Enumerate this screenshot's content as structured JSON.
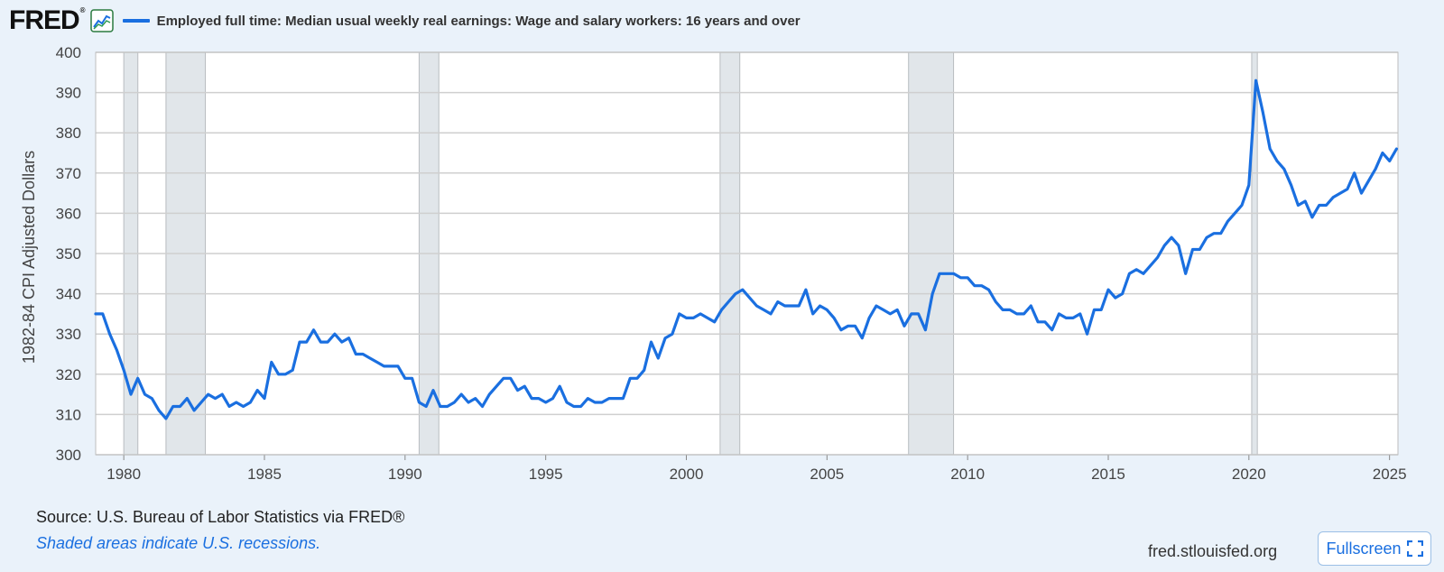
{
  "header": {
    "logo_text": "FRED",
    "logo_reg": "®",
    "logo_icon": "line-chart-icon",
    "series_title": "Employed full time: Median usual weekly real earnings: Wage and salary workers: 16 years and over"
  },
  "footer": {
    "source": "Source: U.S. Bureau of Labor Statistics via FRED®",
    "note": "Shaded areas indicate U.S. recessions.",
    "site": "fred.stlouisfed.org",
    "fullscreen_label": "Fullscreen",
    "fullscreen_icon": "expand-icon"
  },
  "colors": {
    "series": "#1a6fe0",
    "recession": "#e1e6ea",
    "grid": "#cccccc",
    "background": "#eaf2fa"
  },
  "chart_data": {
    "type": "line",
    "title": "Employed full time: Median usual weekly real earnings: Wage and salary workers: 16 years and over",
    "ylabel": "1982-84 CPI Adjusted Dollars",
    "xlabel": "",
    "ylim": [
      300,
      400
    ],
    "xlim": [
      1979.0,
      2025.3
    ],
    "yticks": [
      300,
      310,
      320,
      330,
      340,
      350,
      360,
      370,
      380,
      390,
      400
    ],
    "xticks": [
      1980,
      1985,
      1990,
      1995,
      2000,
      2005,
      2010,
      2015,
      2020,
      2025
    ],
    "grid": true,
    "legend": "top-left",
    "recessions": [
      [
        1980.0,
        1980.5
      ],
      [
        1981.5,
        1982.9
      ],
      [
        1990.5,
        1991.2
      ],
      [
        2001.2,
        2001.9
      ],
      [
        2007.9,
        2009.5
      ],
      [
        2020.1,
        2020.3
      ]
    ],
    "series": [
      {
        "name": "Employed full time: Median usual weekly real earnings: Wage and salary workers: 16 years and over",
        "points": [
          [
            1979.0,
            335
          ],
          [
            1979.25,
            335
          ],
          [
            1979.5,
            330
          ],
          [
            1979.75,
            326
          ],
          [
            1980.0,
            321
          ],
          [
            1980.25,
            315
          ],
          [
            1980.5,
            319
          ],
          [
            1980.75,
            315
          ],
          [
            1981.0,
            314
          ],
          [
            1981.25,
            311
          ],
          [
            1981.5,
            309
          ],
          [
            1981.75,
            312
          ],
          [
            1982.0,
            312
          ],
          [
            1982.25,
            314
          ],
          [
            1982.5,
            311
          ],
          [
            1982.75,
            313
          ],
          [
            1983.0,
            315
          ],
          [
            1983.25,
            314
          ],
          [
            1983.5,
            315
          ],
          [
            1983.75,
            312
          ],
          [
            1984.0,
            313
          ],
          [
            1984.25,
            312
          ],
          [
            1984.5,
            313
          ],
          [
            1984.75,
            316
          ],
          [
            1985.0,
            314
          ],
          [
            1985.25,
            323
          ],
          [
            1985.5,
            320
          ],
          [
            1985.75,
            320
          ],
          [
            1986.0,
            321
          ],
          [
            1986.25,
            328
          ],
          [
            1986.5,
            328
          ],
          [
            1986.75,
            331
          ],
          [
            1987.0,
            328
          ],
          [
            1987.25,
            328
          ],
          [
            1987.5,
            330
          ],
          [
            1987.75,
            328
          ],
          [
            1988.0,
            329
          ],
          [
            1988.25,
            325
          ],
          [
            1988.5,
            325
          ],
          [
            1988.75,
            324
          ],
          [
            1989.0,
            323
          ],
          [
            1989.25,
            322
          ],
          [
            1989.5,
            322
          ],
          [
            1989.75,
            322
          ],
          [
            1990.0,
            319
          ],
          [
            1990.25,
            319
          ],
          [
            1990.5,
            313
          ],
          [
            1990.75,
            312
          ],
          [
            1991.0,
            316
          ],
          [
            1991.25,
            312
          ],
          [
            1991.5,
            312
          ],
          [
            1991.75,
            313
          ],
          [
            1992.0,
            315
          ],
          [
            1992.25,
            313
          ],
          [
            1992.5,
            314
          ],
          [
            1992.75,
            312
          ],
          [
            1993.0,
            315
          ],
          [
            1993.25,
            317
          ],
          [
            1993.5,
            319
          ],
          [
            1993.75,
            319
          ],
          [
            1994.0,
            316
          ],
          [
            1994.25,
            317
          ],
          [
            1994.5,
            314
          ],
          [
            1994.75,
            314
          ],
          [
            1995.0,
            313
          ],
          [
            1995.25,
            314
          ],
          [
            1995.5,
            317
          ],
          [
            1995.75,
            313
          ],
          [
            1996.0,
            312
          ],
          [
            1996.25,
            312
          ],
          [
            1996.5,
            314
          ],
          [
            1996.75,
            313
          ],
          [
            1997.0,
            313
          ],
          [
            1997.25,
            314
          ],
          [
            1997.5,
            314
          ],
          [
            1997.75,
            314
          ],
          [
            1998.0,
            319
          ],
          [
            1998.25,
            319
          ],
          [
            1998.5,
            321
          ],
          [
            1998.75,
            328
          ],
          [
            1999.0,
            324
          ],
          [
            1999.25,
            329
          ],
          [
            1999.5,
            330
          ],
          [
            1999.75,
            335
          ],
          [
            2000.0,
            334
          ],
          [
            2000.25,
            334
          ],
          [
            2000.5,
            335
          ],
          [
            2000.75,
            334
          ],
          [
            2001.0,
            333
          ],
          [
            2001.25,
            336
          ],
          [
            2001.5,
            338
          ],
          [
            2001.75,
            340
          ],
          [
            2002.0,
            341
          ],
          [
            2002.25,
            339
          ],
          [
            2002.5,
            337
          ],
          [
            2002.75,
            336
          ],
          [
            2003.0,
            335
          ],
          [
            2003.25,
            338
          ],
          [
            2003.5,
            337
          ],
          [
            2003.75,
            337
          ],
          [
            2004.0,
            337
          ],
          [
            2004.25,
            341
          ],
          [
            2004.5,
            335
          ],
          [
            2004.75,
            337
          ],
          [
            2005.0,
            336
          ],
          [
            2005.25,
            334
          ],
          [
            2005.5,
            331
          ],
          [
            2005.75,
            332
          ],
          [
            2006.0,
            332
          ],
          [
            2006.25,
            329
          ],
          [
            2006.5,
            334
          ],
          [
            2006.75,
            337
          ],
          [
            2007.0,
            336
          ],
          [
            2007.25,
            335
          ],
          [
            2007.5,
            336
          ],
          [
            2007.75,
            332
          ],
          [
            2008.0,
            335
          ],
          [
            2008.25,
            335
          ],
          [
            2008.5,
            331
          ],
          [
            2008.75,
            340
          ],
          [
            2009.0,
            345
          ],
          [
            2009.25,
            345
          ],
          [
            2009.5,
            345
          ],
          [
            2009.75,
            344
          ],
          [
            2010.0,
            344
          ],
          [
            2010.25,
            342
          ],
          [
            2010.5,
            342
          ],
          [
            2010.75,
            341
          ],
          [
            2011.0,
            338
          ],
          [
            2011.25,
            336
          ],
          [
            2011.5,
            336
          ],
          [
            2011.75,
            335
          ],
          [
            2012.0,
            335
          ],
          [
            2012.25,
            337
          ],
          [
            2012.5,
            333
          ],
          [
            2012.75,
            333
          ],
          [
            2013.0,
            331
          ],
          [
            2013.25,
            335
          ],
          [
            2013.5,
            334
          ],
          [
            2013.75,
            334
          ],
          [
            2014.0,
            335
          ],
          [
            2014.25,
            330
          ],
          [
            2014.5,
            336
          ],
          [
            2014.75,
            336
          ],
          [
            2015.0,
            341
          ],
          [
            2015.25,
            339
          ],
          [
            2015.5,
            340
          ],
          [
            2015.75,
            345
          ],
          [
            2016.0,
            346
          ],
          [
            2016.25,
            345
          ],
          [
            2016.5,
            347
          ],
          [
            2016.75,
            349
          ],
          [
            2017.0,
            352
          ],
          [
            2017.25,
            354
          ],
          [
            2017.5,
            352
          ],
          [
            2017.75,
            345
          ],
          [
            2018.0,
            351
          ],
          [
            2018.25,
            351
          ],
          [
            2018.5,
            354
          ],
          [
            2018.75,
            355
          ],
          [
            2019.0,
            355
          ],
          [
            2019.25,
            358
          ],
          [
            2019.5,
            360
          ],
          [
            2019.75,
            362
          ],
          [
            2020.0,
            367
          ],
          [
            2020.25,
            393
          ],
          [
            2020.5,
            385
          ],
          [
            2020.75,
            376
          ],
          [
            2021.0,
            373
          ],
          [
            2021.25,
            371
          ],
          [
            2021.5,
            367
          ],
          [
            2021.75,
            362
          ],
          [
            2022.0,
            363
          ],
          [
            2022.25,
            359
          ],
          [
            2022.5,
            362
          ],
          [
            2022.75,
            362
          ],
          [
            2023.0,
            364
          ],
          [
            2023.25,
            365
          ],
          [
            2023.5,
            366
          ],
          [
            2023.75,
            370
          ],
          [
            2024.0,
            365
          ],
          [
            2024.25,
            368
          ],
          [
            2024.5,
            371
          ],
          [
            2024.75,
            375
          ],
          [
            2025.0,
            373
          ],
          [
            2025.25,
            376
          ]
        ]
      }
    ]
  }
}
